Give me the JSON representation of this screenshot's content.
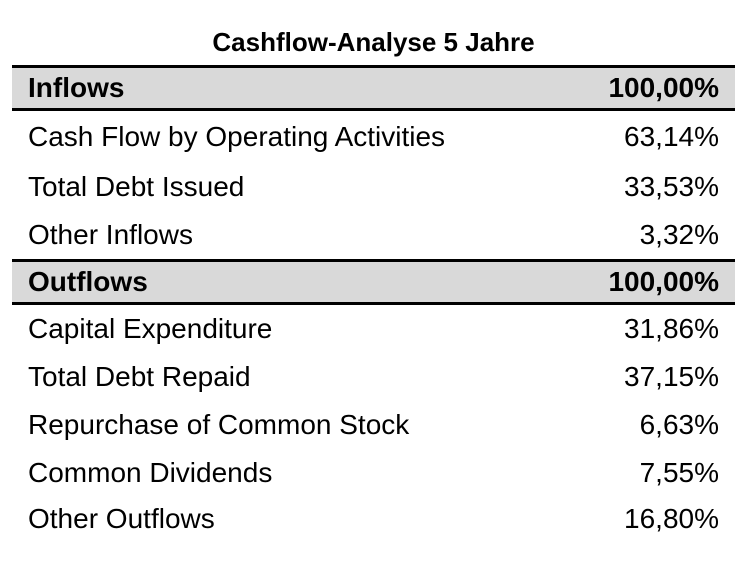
{
  "title": "Cashflow-Analyse 5 Jahre",
  "sections": [
    {
      "label": "Inflows",
      "total": "100,00%",
      "rows": [
        {
          "label": "Cash Flow by Operating Activities",
          "value": "63,14%"
        },
        {
          "label": "Total Debt Issued",
          "value": "33,53%"
        },
        {
          "label": "Other Inflows",
          "value": "3,32%"
        }
      ]
    },
    {
      "label": "Outflows",
      "total": "100,00%",
      "rows": [
        {
          "label": "Capital Expenditure",
          "value": "31,86%"
        },
        {
          "label": "Total Debt Repaid",
          "value": "37,15%"
        },
        {
          "label": "Repurchase of Common Stock",
          "value": "6,63%"
        },
        {
          "label": "Common Dividends",
          "value": "7,55%"
        },
        {
          "label": "Other Outflows",
          "value": "16,80%"
        }
      ]
    }
  ]
}
